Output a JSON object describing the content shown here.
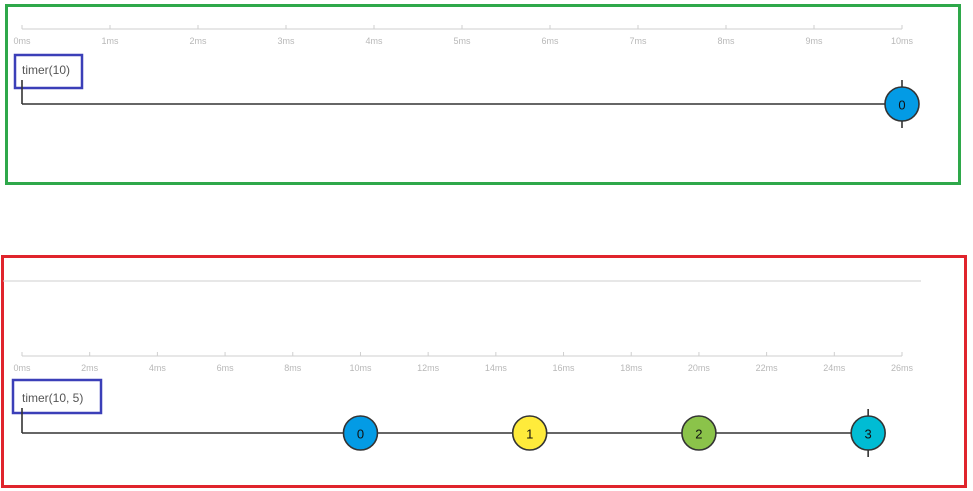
{
  "diagrams": [
    {
      "operator_label": "timer(10)",
      "axis": {
        "max": 10,
        "step": 1,
        "unit": "ms"
      },
      "emissions": [
        {
          "value": "0",
          "time": 10,
          "color": "#039be5"
        }
      ],
      "completes_at": 10
    },
    {
      "operator_label": "timer(10, 5)",
      "axis": {
        "max": 26,
        "step": 2,
        "unit": "ms"
      },
      "emissions": [
        {
          "value": "0",
          "time": 10,
          "color": "#039be5"
        },
        {
          "value": "1",
          "time": 15,
          "color": "#ffeb3b"
        },
        {
          "value": "2",
          "time": 20,
          "color": "#8bc34a"
        },
        {
          "value": "3",
          "time": 25,
          "color": "#00bcd4"
        }
      ],
      "completes_at": 25
    }
  ],
  "colors": {
    "frame_top": "#2ea84a",
    "frame_bottom": "#e0242c",
    "label_box": "#3b3fb8"
  }
}
